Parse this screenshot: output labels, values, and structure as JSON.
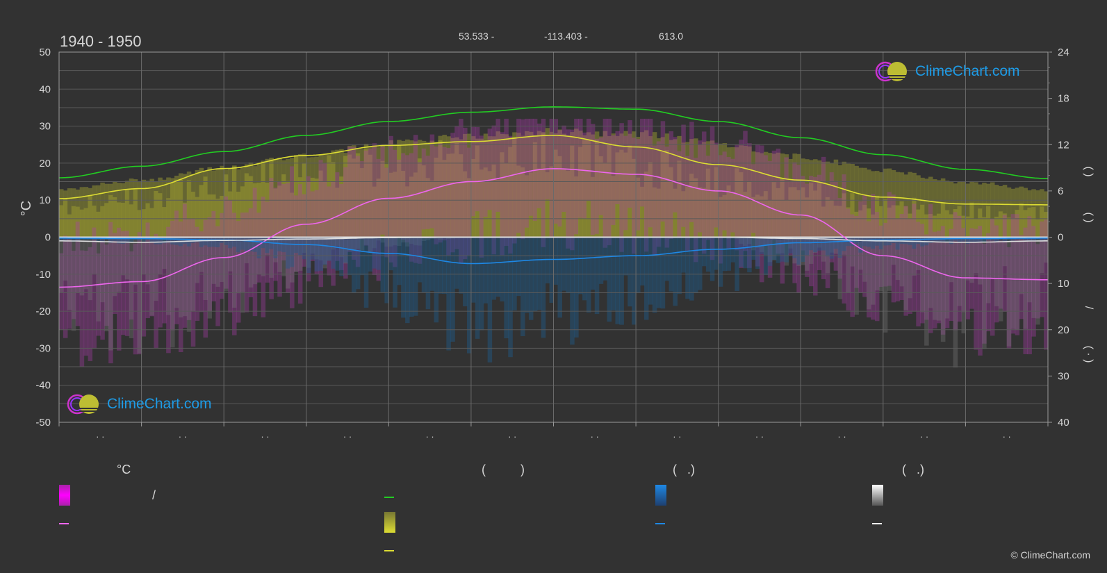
{
  "header": {
    "period": "1940 - 1950",
    "latitude": "53.533 -",
    "longitude": "-113.403 -",
    "elevation": "613.0"
  },
  "brand": {
    "logo_text": "ClimeChart.com",
    "copyright": "© ClimeChart.com"
  },
  "legend": {
    "temperature_header": "°C",
    "sunshine_header": "(          )",
    "rain_header": "(   .)",
    "snow_header": "(   .)",
    "temp_range_sep": "/"
  },
  "colors": {
    "background": "#323232",
    "daylight": "#22cc22",
    "sunshine": "#dddd33",
    "temp_mean": "#ee66ee",
    "temp_range": "#cc22cc",
    "rain": "#1e88e5",
    "snow": "#dddddd",
    "brand_blue": "#1e9be6"
  },
  "chart_data": {
    "type": "area",
    "x_months": 12,
    "y_left": {
      "label": "°C",
      "ticks": [
        "50",
        "40",
        "30",
        "20",
        "10",
        "0",
        "-10",
        "-20",
        "-30",
        "-40",
        "-50"
      ],
      "range": [
        -50,
        50
      ]
    },
    "y_right_top": {
      "ticks": [
        "24",
        "18",
        "12",
        "6",
        "0"
      ],
      "range": [
        0,
        24
      ]
    },
    "y_right_bottom": {
      "ticks": [
        "0",
        "10",
        "20",
        "30",
        "40"
      ],
      "range": [
        0,
        40
      ]
    },
    "right_axis_labels": [
      "(    )",
      "(    )",
      "/",
      "(  ·  )"
    ],
    "x_tick_labels": [
      "· ·",
      "· ·",
      "· ·",
      "· ·",
      "· ·",
      "· ·",
      "· ·",
      "· ·",
      "· ·",
      "· ·",
      "· ·",
      "· ·"
    ],
    "series": [
      {
        "key": "daylight",
        "unit_axis": "right_top",
        "values": [
          7.7,
          9.2,
          11.1,
          13.2,
          15.0,
          16.2,
          16.9,
          16.6,
          15.0,
          12.9,
          10.7,
          8.8,
          7.6
        ]
      },
      {
        "key": "sunshine",
        "unit_axis": "right_top",
        "values": [
          5.0,
          6.3,
          8.9,
          10.6,
          11.9,
          12.4,
          13.2,
          11.7,
          9.4,
          7.4,
          5.2,
          4.3,
          4.2
        ]
      },
      {
        "key": "temp_mean",
        "unit_axis": "left",
        "values": [
          -13.5,
          -12.0,
          -5.5,
          3.5,
          10.5,
          15.0,
          18.5,
          17.0,
          12.5,
          6.0,
          -5.0,
          -11.0,
          -11.5
        ]
      },
      {
        "key": "rain",
        "unit_axis": "right_bottom",
        "values": [
          0.2,
          0.3,
          0.6,
          1.6,
          3.5,
          5.7,
          4.8,
          4.0,
          2.6,
          1.2,
          0.6,
          0.3,
          0.2
        ]
      },
      {
        "key": "snow",
        "unit_axis": "right_bottom",
        "values": [
          0.8,
          1.1,
          0.7,
          0.4,
          0.1,
          0.0,
          0.0,
          0.0,
          0.0,
          0.3,
          0.8,
          1.1,
          0.8
        ]
      }
    ]
  }
}
